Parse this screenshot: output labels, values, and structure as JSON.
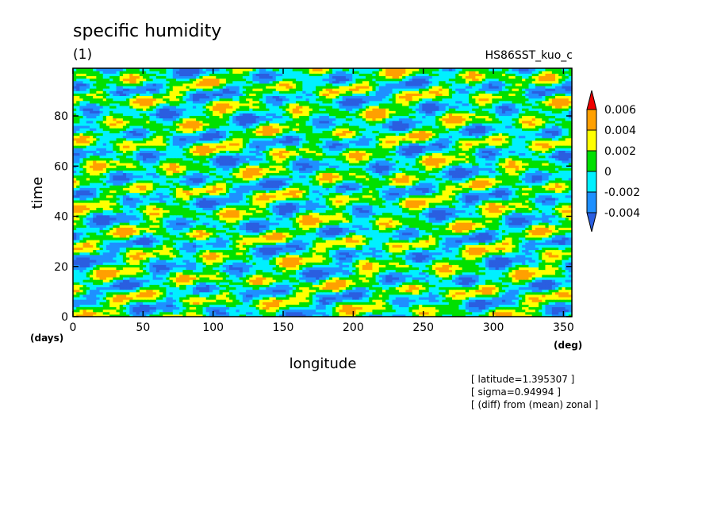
{
  "chart_data": {
    "type": "heatmap",
    "title": "specific humidity",
    "subtitle": "(1)",
    "run_label": "HS86SST_kuo_c",
    "xlabel": "longitude",
    "ylabel": "time",
    "x_unit": "(deg)",
    "y_unit": "(days)",
    "xlim": [
      0,
      356
    ],
    "ylim": [
      0,
      99
    ],
    "x_ticks": [
      0,
      50,
      100,
      150,
      200,
      250,
      300,
      350
    ],
    "y_ticks": [
      0,
      20,
      40,
      60,
      80
    ],
    "color_levels": [
      "-0.004",
      "-0.002",
      "0",
      "0.002",
      "0.004",
      "0.006"
    ],
    "color_bins": [
      {
        "range": "< -0.004",
        "color": "#2a5ee0"
      },
      {
        "range": "-0.004 to -0.002",
        "color": "#1e90ff"
      },
      {
        "range": "-0.002 to 0",
        "color": "#00f0ff"
      },
      {
        "range": "0 to 0.002",
        "color": "#00e000"
      },
      {
        "range": "0.002 to 0.004",
        "color": "#ffff00"
      },
      {
        "range": "0.004 to 0.006",
        "color": "#ffa000"
      },
      {
        "range": "> 0.006",
        "color": "#ee0000"
      }
    ],
    "annotations": [
      "[ latitude=1.395307 ]",
      "[ sigma=0.94994 ]",
      "[ (diff) from (mean) zonal ]"
    ]
  }
}
